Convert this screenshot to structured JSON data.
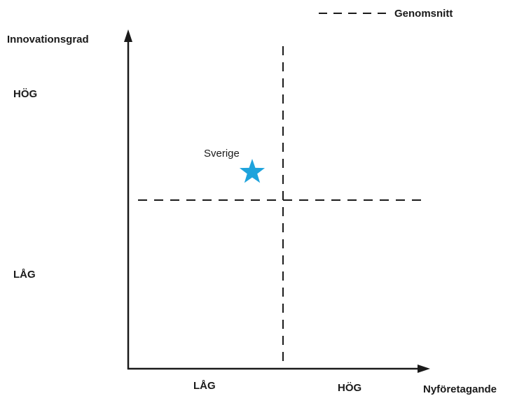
{
  "legend": {
    "label": "Genomsnitt"
  },
  "y_axis": {
    "title": "Innovationsgrad",
    "high_label": "HÖG",
    "low_label": "LÅG"
  },
  "x_axis": {
    "title": "Nyföretagande",
    "low_label": "LÅG",
    "high_label": "HÖG"
  },
  "marker": {
    "label": "Sverige",
    "icon": "star-icon",
    "color": "#1ea3dc"
  },
  "colors": {
    "axis": "#1a1a1a",
    "average_line": "#1a1a1a"
  }
}
